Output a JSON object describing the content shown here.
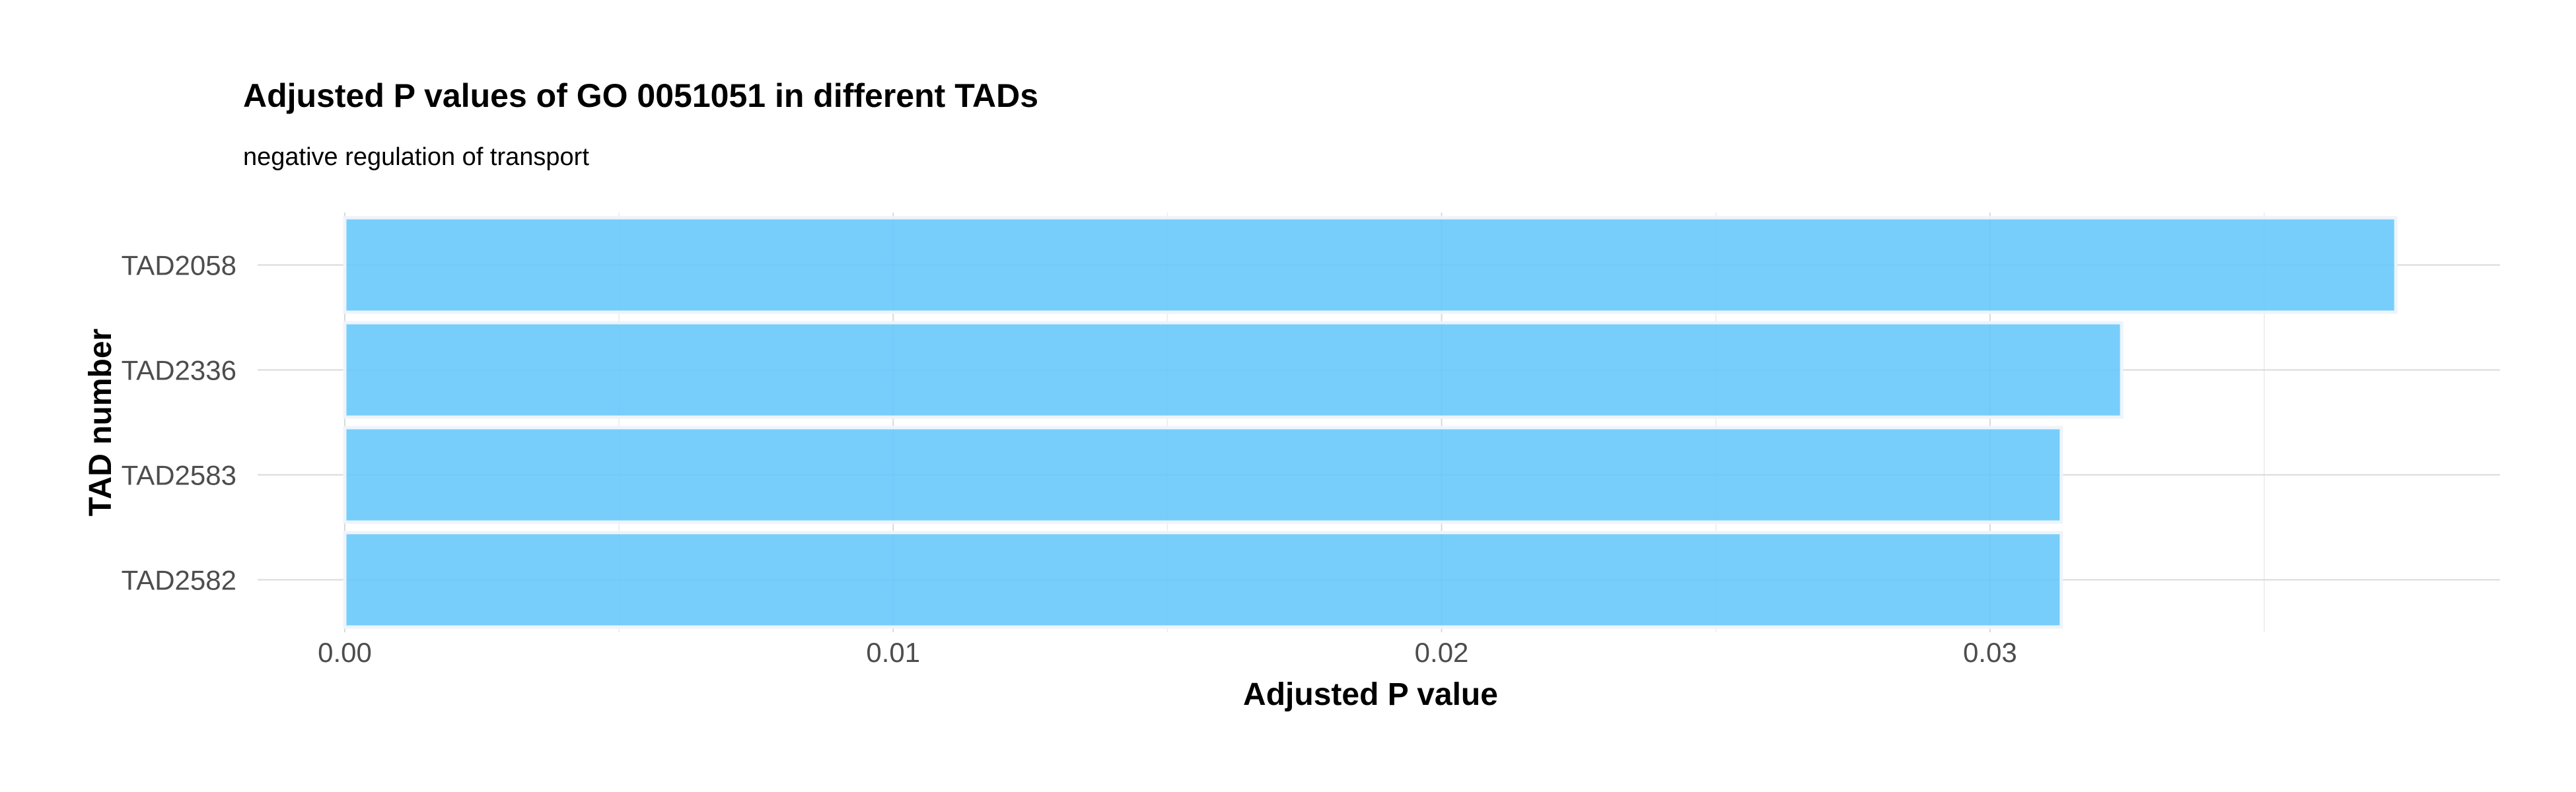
{
  "chart_data": {
    "type": "bar",
    "orientation": "horizontal",
    "title": "Adjusted P values of GO 0051051 in different TADs",
    "subtitle": "negative regulation of transport",
    "xlabel": "Adjusted P value",
    "ylabel": "TAD number",
    "categories": [
      "TAD2058",
      "TAD2336",
      "TAD2583",
      "TAD2582"
    ],
    "values": [
      0.0374,
      0.0324,
      0.0313,
      0.0313
    ],
    "xlim": [
      0,
      0.0393
    ],
    "xticks": [
      0.0,
      0.01,
      0.02,
      0.03
    ],
    "xtick_labels": [
      "0.00",
      "0.01",
      "0.02",
      "0.03"
    ],
    "grid": true,
    "bar_color": "#5fc6fa"
  }
}
